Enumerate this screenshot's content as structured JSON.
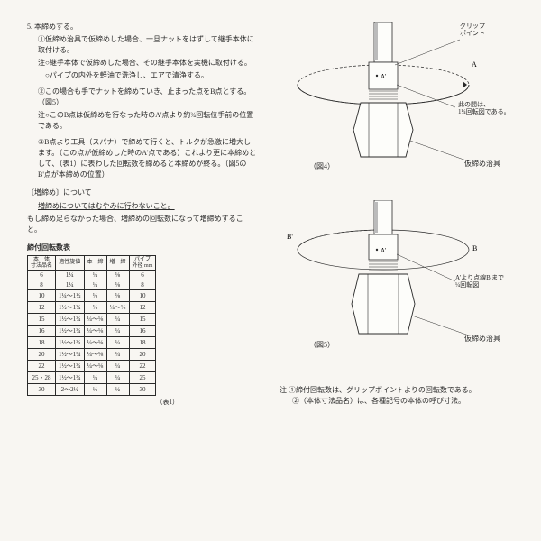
{
  "section": {
    "number": "5.",
    "title": "本締めする。",
    "items": [
      "①仮締め治具で仮締めした場合、一旦ナットをはずして継手本体に取付ける。",
      "注○継手本体で仮締めした場合、その継手本体を実機に取付ける。",
      "　○パイプの内外を軽油で洗浄し、エアで清浄する。",
      "②この場合も手でナットを締めていき、止まった点をB点とする。（図5）",
      "注○このB点は仮締めを行なった時のA'点より約¾回転位手前の位置である。",
      "③B点より工具（スパナ）で締めて行くと、トルクが急激に増大します。（この点が仮締めした時のA'点である）これより更に本締めとして、（表1）に表わした回転数を締めると本締めが終る。（図5のB'点が本締めの位置）"
    ]
  },
  "mashijime": {
    "heading": "〔増締め〕について",
    "underlined": "増締めについてはむやみに行わないこと。",
    "text": "もし締め足らなかった場合、増締めの回転数になって増締めすること。"
  },
  "table": {
    "title": "締付回転数表",
    "cols": [
      "本　体\n寸法品名",
      "適性旋値",
      "本　締",
      "増　締",
      "パイプ\n外径 mm"
    ],
    "rows": [
      [
        "6",
        "1¼",
        "¼",
        "⅛",
        "6"
      ],
      [
        "8",
        "1¼",
        "¼",
        "⅛",
        "8"
      ],
      [
        "10",
        "1¼〜1½",
        "⅛",
        "⅛",
        "10"
      ],
      [
        "12",
        "1½〜1¾",
        "⅛",
        "¼〜⅛",
        "12"
      ],
      [
        "15",
        "1½〜1¾",
        "¼〜⅛",
        "¼",
        "15"
      ],
      [
        "16",
        "1½〜1¾",
        "¼〜⅛",
        "¼",
        "16"
      ],
      [
        "18",
        "1½〜1¾",
        "¼〜⅛",
        "¼",
        "18"
      ],
      [
        "20",
        "1½〜1¾",
        "¼〜⅛",
        "¼",
        "20"
      ],
      [
        "22",
        "1½〜1¾",
        "¼〜⅛",
        "¼",
        "22"
      ],
      [
        "25・28",
        "1½〜1¾",
        "¼",
        "¼",
        "25"
      ],
      [
        "30",
        "2〜2½",
        "½",
        "½",
        "30"
      ]
    ],
    "label": "（表1）"
  },
  "fig4": {
    "grip": "グリップ\nポイント",
    "a": "A",
    "a2": "A'",
    "note": "此の間は、\n1¼回転図である。",
    "caption_fig": "（図4）",
    "caption_tool": "仮締め治具"
  },
  "fig5": {
    "b1": "B'",
    "b2": "B",
    "a2": "A'",
    "note": "A'より点線B'まで\n¼回転図",
    "caption_fig": "（図5）",
    "caption_tool": "仮締め治具"
  },
  "notes": {
    "label": "注",
    "n1": "①締付回転数は、グリップポイントよりの回転数である。",
    "n2": "②（本体寸法品名）は、各種記号の本体の呼び寸法。"
  }
}
